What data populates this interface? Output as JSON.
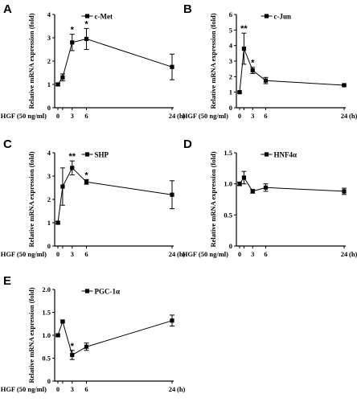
{
  "chart_data": [
    {
      "type": "line",
      "panel": "A",
      "legend": "c-Met",
      "ylabel": "Relative mRNA expression (fold)",
      "xlabel_prefix": "HGF (50 ng/ml)",
      "xunit": "(h)",
      "ylim": [
        0,
        4
      ],
      "yticks": [
        "0",
        "1",
        "2",
        "3",
        "4"
      ],
      "xticks": [
        "0",
        "3",
        "6",
        "24"
      ],
      "x": [
        0,
        1,
        3,
        6,
        24
      ],
      "values": [
        1.0,
        1.3,
        2.8,
        2.95,
        1.75
      ],
      "errors": [
        0.05,
        0.15,
        0.35,
        0.45,
        0.55
      ],
      "significance": [
        "",
        "",
        "*",
        "*",
        ""
      ]
    },
    {
      "type": "line",
      "panel": "B",
      "legend": "c-Jun",
      "ylabel": "Relative mRNA expression (fold)",
      "xlabel_prefix": "HGF (50 ng/ml)",
      "xunit": "(h)",
      "ylim": [
        0,
        6
      ],
      "yticks": [
        "0",
        "1",
        "2",
        "3",
        "4",
        "5",
        "6"
      ],
      "xticks": [
        "0",
        "3",
        "6",
        "24"
      ],
      "x": [
        0,
        1,
        3,
        6,
        24
      ],
      "values": [
        1.0,
        3.8,
        2.4,
        1.75,
        1.45
      ],
      "errors": [
        0.05,
        1.0,
        0.2,
        0.2,
        0.05
      ],
      "significance": [
        "",
        "**",
        "*",
        "",
        ""
      ]
    },
    {
      "type": "line",
      "panel": "C",
      "legend": "SHP",
      "ylabel": "Relative mRNA expression (fold)",
      "xlabel_prefix": "HGF (50 ng/ml)",
      "xunit": "(h)",
      "ylim": [
        0,
        4
      ],
      "yticks": [
        "0",
        "1",
        "2",
        "3",
        "4"
      ],
      "xticks": [
        "0",
        "3",
        "6",
        "24"
      ],
      "x": [
        0,
        1,
        3,
        6,
        24
      ],
      "values": [
        1.0,
        2.55,
        3.35,
        2.75,
        2.2
      ],
      "errors": [
        0.05,
        0.8,
        0.3,
        0.1,
        0.6
      ],
      "significance": [
        "",
        "",
        "**",
        "*",
        ""
      ]
    },
    {
      "type": "line",
      "panel": "D",
      "legend": "HNF4α",
      "ylabel": "Relative mRNA expression (fold)",
      "xlabel_prefix": "HGF (50 ng/ml)",
      "xunit": "(h)",
      "ylim": [
        0,
        1.5
      ],
      "yticks": [
        "0",
        "0.5",
        "1.0",
        "1.5"
      ],
      "xticks": [
        "0",
        "3",
        "6",
        "24"
      ],
      "x": [
        0,
        1,
        3,
        6,
        24
      ],
      "values": [
        1.0,
        1.1,
        0.88,
        0.94,
        0.88
      ],
      "errors": [
        0.03,
        0.1,
        0.03,
        0.06,
        0.05
      ],
      "significance": [
        "",
        "",
        "",
        "",
        ""
      ]
    },
    {
      "type": "line",
      "panel": "E",
      "legend": "PGC-1α",
      "ylabel": "Relative mRNA expression (fold)",
      "xlabel_prefix": "HGF (50 ng/ml)",
      "xunit": "(h)",
      "ylim": [
        0,
        2.0
      ],
      "yticks": [
        "0",
        "0.5",
        "1.0",
        "1.5",
        "2.0"
      ],
      "xticks": [
        "0",
        "3",
        "6",
        "24"
      ],
      "x": [
        0,
        1,
        3,
        6,
        24
      ],
      "values": [
        1.0,
        1.3,
        0.57,
        0.75,
        1.32
      ],
      "errors": [
        0.02,
        0.02,
        0.1,
        0.08,
        0.12
      ],
      "significance": [
        "",
        "",
        "*",
        "",
        ""
      ]
    }
  ]
}
